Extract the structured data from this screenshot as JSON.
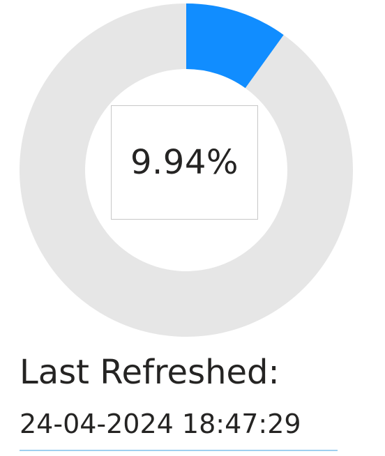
{
  "chart_data": {
    "type": "pie",
    "variant": "donut",
    "values": [
      9.94,
      90.06
    ],
    "colors": [
      "#118DFF",
      "#E6E6E6"
    ],
    "center_label": "9.94%"
  },
  "refresh": {
    "label": "Last Refreshed:",
    "timestamp": "24-04-2024 18:47:29"
  },
  "colors": {
    "accent": "#118DFF",
    "track": "#E6E6E6",
    "underline": "#9ED0EF",
    "text": "#252423"
  }
}
